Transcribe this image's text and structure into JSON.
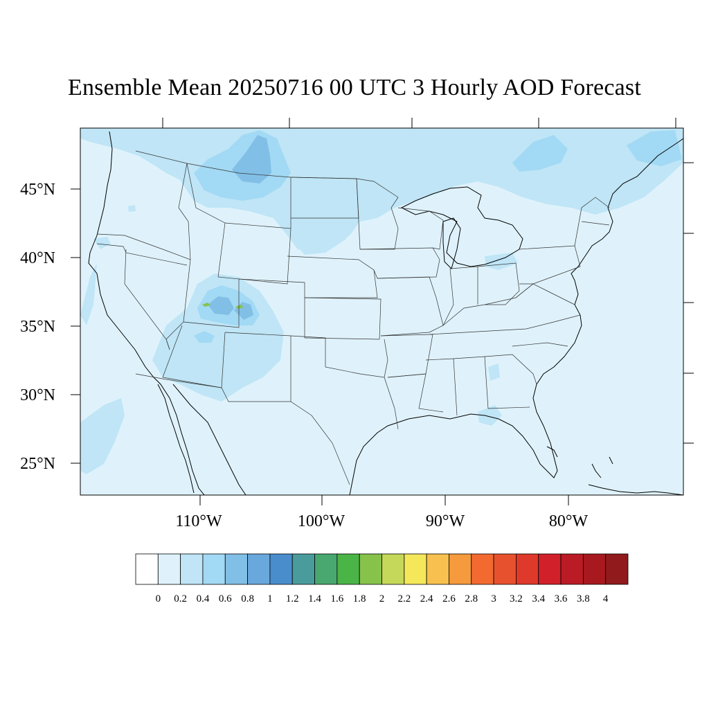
{
  "title": "Ensemble Mean 20250716 00 UTC 3 Hourly AOD Forecast",
  "axes": {
    "lat_labels": [
      "45°N",
      "40°N",
      "35°N",
      "30°N",
      "25°N"
    ],
    "lon_labels": [
      "110°W",
      "100°W",
      "90°W",
      "80°W"
    ]
  },
  "colorbar": {
    "labels": [
      "0",
      "0.2",
      "0.4",
      "0.6",
      "0.8",
      "1",
      "1.2",
      "1.4",
      "1.6",
      "1.8",
      "2",
      "2.2",
      "2.4",
      "2.6",
      "2.8",
      "3",
      "3.2",
      "3.4",
      "3.6",
      "3.8",
      "4"
    ],
    "colors": [
      "#ffffff",
      "#dff2fb",
      "#bfe5f6",
      "#a2d9f4",
      "#82bfe6",
      "#69a8dc",
      "#4a8dcc",
      "#4a9c9c",
      "#48a870",
      "#4bb447",
      "#87c34b",
      "#c6d85a",
      "#f5e75a",
      "#f8c04e",
      "#f69a3e",
      "#f26a30",
      "#e8512d",
      "#df392b",
      "#d2202a",
      "#bb1b25",
      "#a7191f",
      "#901a1c"
    ]
  },
  "map": {
    "background_color": "#dff2fb",
    "plume_colors": [
      "#bfe5f6",
      "#a2d9f4",
      "#82bfe6",
      "#69a8dc",
      "#87c34b"
    ]
  }
}
